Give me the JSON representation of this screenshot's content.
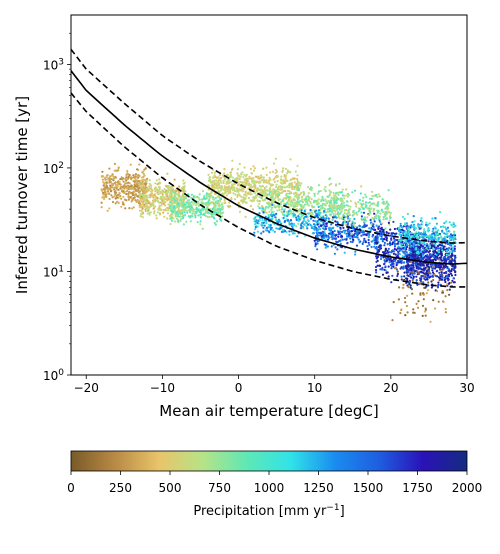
{
  "chart_data": {
    "type": "scatter",
    "xlabel": "Mean air temperature [degC]",
    "ylabel": "Inferred turnover time [yr]",
    "xlim": [
      -22,
      30
    ],
    "ylim": [
      1,
      3000
    ],
    "yscale": "log",
    "x_ticks": [
      -20,
      -10,
      0,
      10,
      20,
      30
    ],
    "y_ticks": [
      {
        "value": 1,
        "base": "10",
        "exp": "0"
      },
      {
        "value": 10,
        "base": "10",
        "exp": "1"
      },
      {
        "value": 100,
        "base": "10",
        "exp": "2"
      },
      {
        "value": 1000,
        "base": "10",
        "exp": "3"
      }
    ],
    "grid": false,
    "fit_curve": {
      "style": "solid",
      "color": "#000000",
      "points": [
        [
          -22,
          870
        ],
        [
          -20,
          560
        ],
        [
          -15,
          260
        ],
        [
          -10,
          130
        ],
        [
          -5,
          72
        ],
        [
          0,
          43
        ],
        [
          5,
          29
        ],
        [
          10,
          21
        ],
        [
          15,
          16.5
        ],
        [
          20,
          13.8
        ],
        [
          25,
          12.2
        ],
        [
          28,
          11.8
        ],
        [
          30,
          12.0
        ]
      ]
    },
    "upper_bound": {
      "style": "dashed",
      "color": "#000000",
      "points": [
        [
          -22,
          1400
        ],
        [
          -20,
          900
        ],
        [
          -15,
          420
        ],
        [
          -10,
          205
        ],
        [
          -5,
          115
        ],
        [
          0,
          70
        ],
        [
          5,
          46
        ],
        [
          10,
          33
        ],
        [
          15,
          26
        ],
        [
          20,
          22
        ],
        [
          25,
          19.5
        ],
        [
          28,
          18.8
        ],
        [
          30,
          19.0
        ]
      ]
    },
    "lower_bound": {
      "style": "dashed",
      "color": "#000000",
      "points": [
        [
          -22,
          530
        ],
        [
          -20,
          350
        ],
        [
          -15,
          160
        ],
        [
          -10,
          80
        ],
        [
          -5,
          44
        ],
        [
          0,
          26.5
        ],
        [
          5,
          17.5
        ],
        [
          10,
          12.8
        ],
        [
          15,
          10
        ],
        [
          20,
          8.4
        ],
        [
          25,
          7.4
        ],
        [
          28,
          7.1
        ],
        [
          30,
          7.1
        ]
      ]
    },
    "point_clusters": [
      {
        "x_range": [
          -18,
          -12
        ],
        "y_center": 65,
        "y_spread_decades": 0.13,
        "precip_range": [
          200,
          420
        ],
        "count": 380
      },
      {
        "x_range": [
          -13,
          -7
        ],
        "y_center": 50,
        "y_spread_decades": 0.12,
        "precip_range": [
          350,
          700
        ],
        "count": 420
      },
      {
        "x_range": [
          -9,
          -2
        ],
        "y_center": 42,
        "y_spread_decades": 0.1,
        "precip_range": [
          600,
          1000
        ],
        "count": 380
      },
      {
        "x_range": [
          -4,
          8
        ],
        "y_center": 65,
        "y_spread_decades": 0.13,
        "precip_range": [
          400,
          700
        ],
        "count": 650
      },
      {
        "x_range": [
          3,
          14
        ],
        "y_center": 45,
        "y_spread_decades": 0.13,
        "precip_range": [
          550,
          900
        ],
        "count": 450
      },
      {
        "x_range": [
          2,
          12
        ],
        "y_center": 30,
        "y_spread_decades": 0.09,
        "precip_range": [
          1000,
          1500
        ],
        "count": 260
      },
      {
        "x_range": [
          10,
          19
        ],
        "y_center": 24,
        "y_spread_decades": 0.12,
        "precip_range": [
          1200,
          1800
        ],
        "count": 360
      },
      {
        "x_range": [
          12,
          20
        ],
        "y_center": 40,
        "y_spread_decades": 0.12,
        "precip_range": [
          500,
          1000
        ],
        "count": 220
      },
      {
        "x_range": [
          18,
          24
        ],
        "y_center": 16,
        "y_spread_decades": 0.18,
        "precip_range": [
          1400,
          2000
        ],
        "count": 420
      },
      {
        "x_range": [
          22,
          28.5
        ],
        "y_center": 13,
        "y_spread_decades": 0.17,
        "precip_range": [
          1500,
          2000
        ],
        "count": 750
      },
      {
        "x_range": [
          21,
          28.5
        ],
        "y_center": 22,
        "y_spread_decades": 0.12,
        "precip_range": [
          900,
          1400
        ],
        "count": 320
      },
      {
        "x_range": [
          20,
          28
        ],
        "y_center": 7,
        "y_spread_decades": 0.22,
        "precip_range": [
          0,
          400
        ],
        "count": 90
      }
    ],
    "colorbar": {
      "label_text": "Precipitation [mm yr",
      "label_sup": "−1",
      "label_close": "]",
      "min": 0,
      "max": 2000,
      "ticks": [
        "0",
        "250",
        "500",
        "750",
        "1000",
        "1250",
        "1500",
        "1750",
        "2000"
      ],
      "colors": [
        "#7a5a28",
        "#b88a45",
        "#e9c46a",
        "#b6e388",
        "#5ee8b5",
        "#30e3e8",
        "#1a8cf0",
        "#1f5ee0",
        "#2a12b8",
        "#152b80"
      ]
    }
  }
}
